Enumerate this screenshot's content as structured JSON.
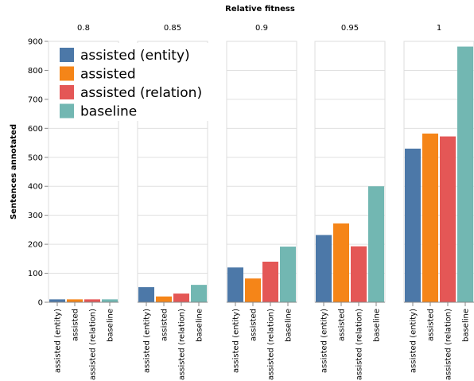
{
  "chart_data": {
    "type": "bar",
    "facet_title": "Relative fitness",
    "facets": [
      "0.8",
      "0.85",
      "0.9",
      "0.95",
      "1"
    ],
    "categories": [
      "assisted (entity)",
      "assisted",
      "assisted (relation)",
      "baseline"
    ],
    "ylabel": "Sentences annotated",
    "ylim": [
      0,
      900
    ],
    "yticks": [
      0,
      100,
      200,
      300,
      400,
      500,
      600,
      700,
      800,
      900
    ],
    "colors": [
      "#4c78a8",
      "#f58518",
      "#e45756",
      "#72b7b2"
    ],
    "legend": {
      "position": "top-left",
      "entries": [
        "assisted (entity)",
        "assisted",
        "assisted (relation)",
        "baseline"
      ]
    },
    "grid": true,
    "values": [
      [
        10,
        10,
        10,
        10
      ],
      [
        52,
        20,
        30,
        60
      ],
      [
        120,
        82,
        140,
        192
      ],
      [
        232,
        272,
        193,
        400
      ],
      [
        530,
        582,
        572,
        882
      ]
    ]
  }
}
